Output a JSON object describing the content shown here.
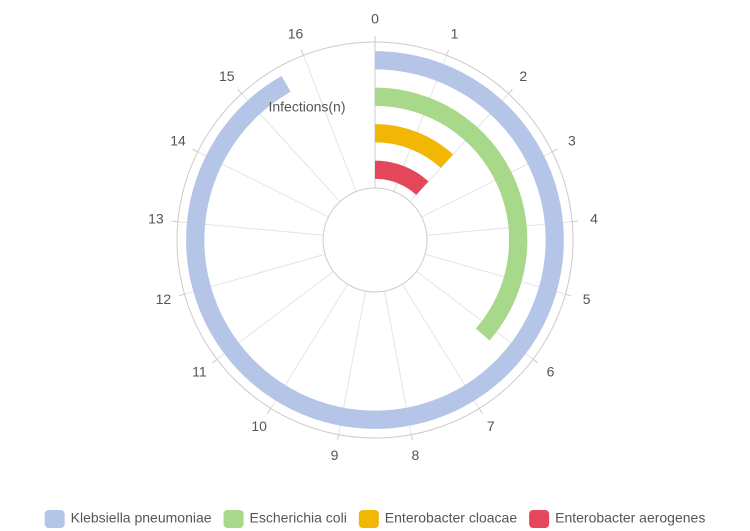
{
  "chart_data": {
    "type": "polar-bar",
    "radius_axis_name": "Infections(n)",
    "xlim": [
      0,
      17
    ],
    "xticks": [
      0,
      1,
      2,
      3,
      4,
      5,
      6,
      7,
      8,
      9,
      10,
      11,
      12,
      13,
      14,
      15,
      16
    ],
    "grid": true,
    "legend": "bottom",
    "series": [
      {
        "name": "Klebsiella pneumoniae",
        "color": "#b5c5e8",
        "values": [
          15.6
        ]
      },
      {
        "name": "Escherichia coli",
        "color": "#a8d88a",
        "values": [
          6.2
        ]
      },
      {
        "name": "Enterobacter cloacae",
        "color": "#f2b705",
        "values": [
          2
        ]
      },
      {
        "name": "Enterobacter aerogenes",
        "color": "#e5475a",
        "values": [
          2
        ]
      }
    ]
  }
}
